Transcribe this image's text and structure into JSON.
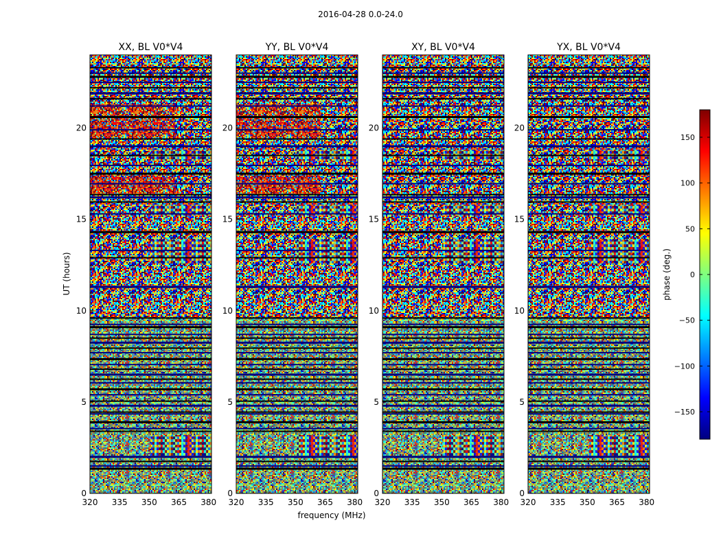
{
  "figure": {
    "suptitle": "2016-04-28 0.0-24.0"
  },
  "colors": {
    "jet": [
      "#00007f",
      "#0000ff",
      "#007fff",
      "#00ffff",
      "#7fff7f",
      "#ffff00",
      "#ff7f00",
      "#ff0000",
      "#7f0000"
    ],
    "frame": "#000000",
    "background": "#ffffff"
  },
  "chart_data": {
    "type": "heatmap",
    "xlabel": "frequency (MHz)",
    "ylabel": "UT (hours)",
    "xlim": [
      320,
      381.5
    ],
    "ylim": [
      0,
      24
    ],
    "xticks": [
      320,
      335,
      350,
      365,
      380
    ],
    "yticks": [
      0,
      5,
      10,
      15,
      20
    ],
    "colorbar": {
      "label": "phase (deg.)",
      "range": [
        -180,
        180
      ],
      "ticks": [
        -150,
        -100,
        -50,
        0,
        50,
        100,
        150
      ],
      "colormap": "jet"
    },
    "panels": [
      {
        "title": "XX, BL V0*V4",
        "polarization": "XX",
        "baseline": "V0*V4"
      },
      {
        "title": "YY, BL V0*V4",
        "polarization": "YY",
        "baseline": "V0*V4"
      },
      {
        "title": "XY, BL V0*V4",
        "polarization": "XY",
        "baseline": "V0*V4"
      },
      {
        "title": "YX, BL V0*V4",
        "polarization": "YX",
        "baseline": "V0*V4"
      }
    ],
    "flagged_ut_hours": [
      1.35,
      1.5,
      1.75,
      2.0,
      3.4,
      3.55,
      3.9,
      4.35,
      4.45,
      4.8,
      5.05,
      5.4,
      5.7,
      6.05,
      6.25,
      6.5,
      6.8,
      7.05,
      7.35,
      7.7,
      7.95,
      8.25,
      8.5,
      8.7,
      9.1,
      9.25,
      9.6,
      11.3,
      12.9,
      13.3,
      14.3,
      15.3,
      15.95,
      16.2,
      16.35,
      16.95,
      17.5,
      17.95,
      18.5,
      19.0,
      19.4,
      19.9,
      20.6,
      21.2,
      21.6,
      21.9,
      22.2,
      22.5,
      22.8,
      23.0,
      23.3
    ]
  }
}
